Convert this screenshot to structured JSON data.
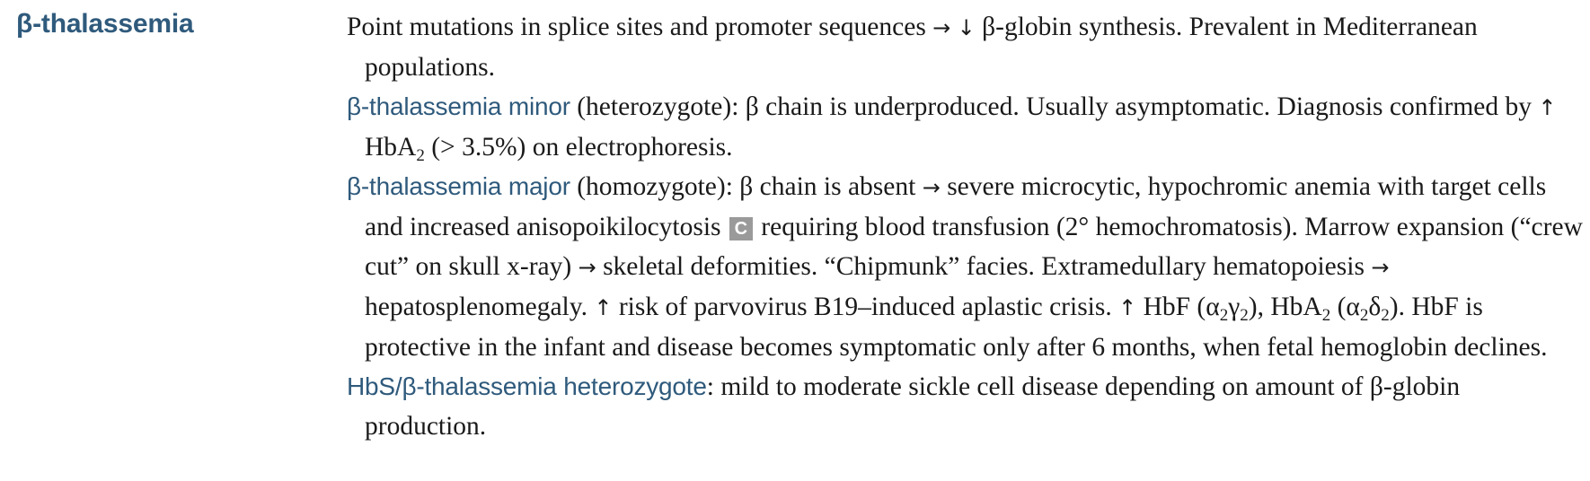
{
  "heading": "β-thalassemia",
  "p1": {
    "a": "Point mutations in splice sites and promoter sequences ",
    "arrow1": "→",
    "down1": "↓",
    "b": " β-globin synthesis. Prevalent in Mediterranean populations."
  },
  "p2": {
    "term": "β-thalassemia minor",
    "a": " (heterozygote): β chain is underproduced. Usually asymptomatic. Diagnosis confirmed by ",
    "up1": "↑",
    "hba": " HbA",
    "sub2": "2",
    "b": " (> 3.5%) on electrophoresis."
  },
  "p3": {
    "term": "β-thalassemia major",
    "a": " (homozygote): β chain is absent ",
    "arrow1": "→",
    "b": " severe microcytic, hypochromic anemia with target cells and increased anisopoikilocytosis ",
    "badge": "C",
    "c": " requiring blood transfusion (2° hemochromatosis). Marrow expansion (“crew cut” on skull x-ray) ",
    "arrow2": "→",
    "d": " skeletal deformities. “Chipmunk” facies. Extramedullary hematopoiesis ",
    "arrow3": "→",
    "e": " hepatosplenomegaly. ",
    "up1": "↑",
    "f": " risk of parvovirus B19–induced aplastic crisis. ",
    "up2": "↑",
    "g": " HbF (α",
    "s1": "2",
    "g2": "γ",
    "s2": "2",
    "h": "), HbA",
    "s3": "2",
    "h2": " (α",
    "s4": "2",
    "h3": "δ",
    "s5": "2",
    "i": "). HbF is protective in the infant and disease becomes symptomatic only after 6 months, when fetal hemoglobin declines."
  },
  "p4": {
    "term": "HbS/β-thalassemia heterozygote",
    "a": ": mild to moderate sickle cell disease depending on amount of β-globin production."
  }
}
